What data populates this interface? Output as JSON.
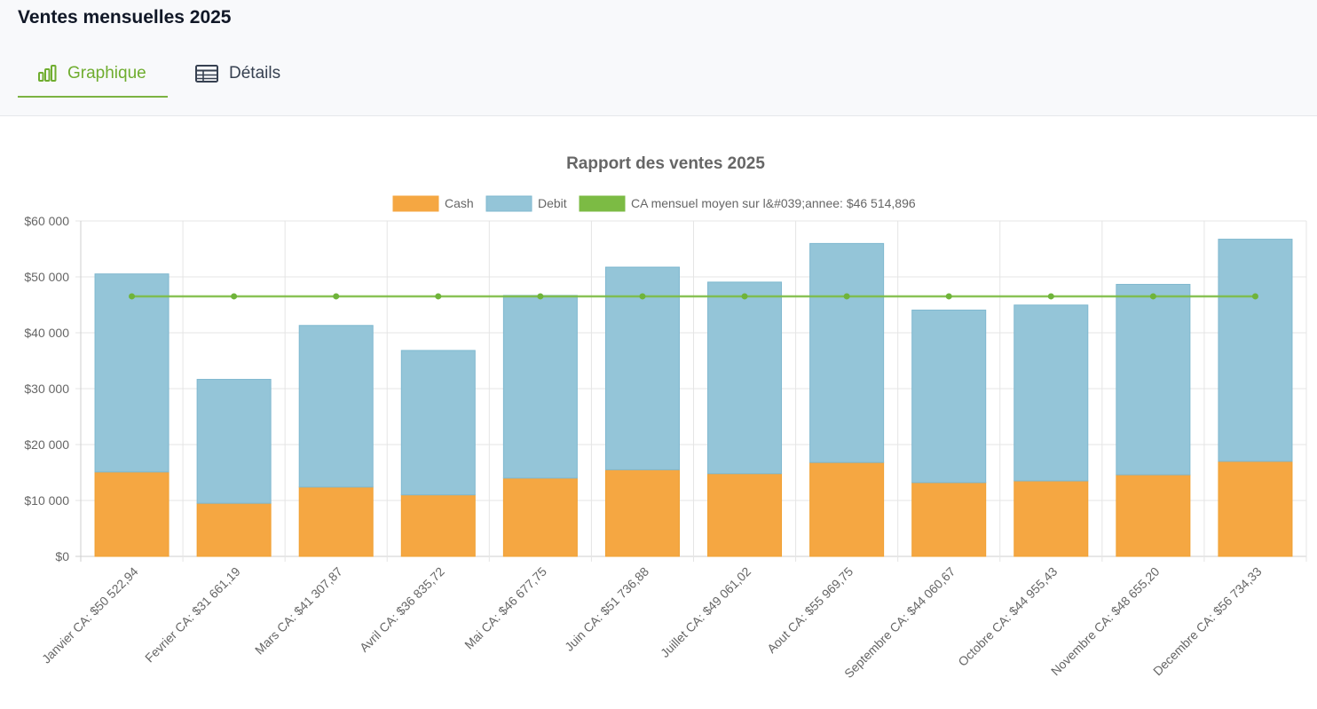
{
  "page": {
    "title": "Ventes mensuelles 2025"
  },
  "tabs": [
    {
      "label": "Graphique",
      "icon": "bar-chart-icon",
      "active": true
    },
    {
      "label": "Détails",
      "icon": "table-icon",
      "active": false
    }
  ],
  "colors": {
    "cash": "#f5a742",
    "debit": "#94c5d8",
    "average": "#7cbb44",
    "accent": "#7cb342"
  },
  "chart_data": {
    "type": "bar",
    "stacked": true,
    "title": "Rapport des ventes 2025",
    "categories": [
      "Janvier CA: $50 522,94",
      "Fevrier CA: $31 661,19",
      "Mars CA: $41 307,87",
      "Avril CA: $36 835,72",
      "Mai CA: $46 677,75",
      "Juin CA: $51 736,88",
      "Juillet CA: $49 061,02",
      "Aout CA: $55 969,75",
      "Septembre CA: $44 060,67",
      "Octobre CA: $44 955,43",
      "Novembre CA: $48 655,20",
      "Decembre CA: $56 734,33"
    ],
    "series": [
      {
        "name": "Cash",
        "type": "bar",
        "values": [
          15100,
          9500,
          12400,
          11000,
          14000,
          15500,
          14800,
          16800,
          13200,
          13500,
          14600,
          17000
        ]
      },
      {
        "name": "Debit",
        "type": "bar",
        "values": [
          35422.94,
          22161.19,
          28907.87,
          25835.72,
          32677.75,
          36236.88,
          34261.02,
          39169.75,
          30860.67,
          31455.43,
          34055.2,
          39734.33
        ]
      },
      {
        "name": "CA mensuel moyen sur l&#039;annee: $46 514,896",
        "type": "line",
        "values": [
          46514.896,
          46514.896,
          46514.896,
          46514.896,
          46514.896,
          46514.896,
          46514.896,
          46514.896,
          46514.896,
          46514.896,
          46514.896,
          46514.896
        ]
      }
    ],
    "ylim": [
      0,
      60000
    ],
    "yticks": [
      "$0",
      "$10 000",
      "$20 000",
      "$30 000",
      "$40 000",
      "$50 000",
      "$60 000"
    ],
    "xlabel": "",
    "ylabel": "",
    "legend": "top-center",
    "grid": true
  }
}
